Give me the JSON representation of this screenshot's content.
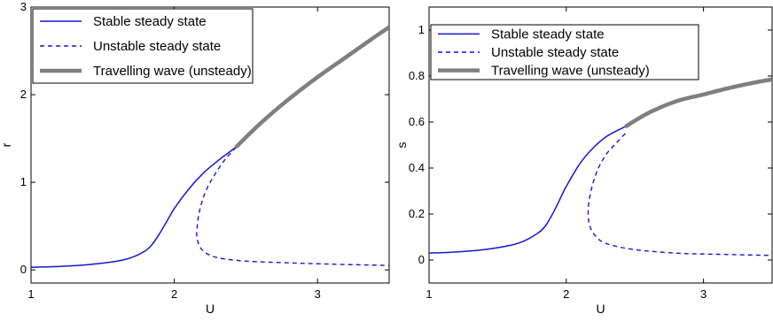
{
  "chart_data": [
    {
      "type": "line",
      "title": "",
      "xlabel": "U",
      "ylabel": "r",
      "xlim": [
        1,
        3.5
      ],
      "ylim": [
        -0.15,
        3
      ],
      "xticks": [
        1,
        2,
        3
      ],
      "yticks": [
        0,
        1,
        2,
        3
      ],
      "grid": false,
      "legend_position": "top-left",
      "series": [
        {
          "name": "Stable steady state",
          "color": "#1515d6",
          "style": "solid",
          "x": [
            1.0,
            1.2,
            1.4,
            1.6,
            1.7,
            1.8,
            1.85,
            1.9,
            1.95,
            2.0,
            2.1,
            2.2,
            2.3,
            2.43
          ],
          "y": [
            0.03,
            0.04,
            0.06,
            0.1,
            0.14,
            0.22,
            0.3,
            0.42,
            0.56,
            0.7,
            0.92,
            1.1,
            1.24,
            1.4
          ]
        },
        {
          "name": "Unstable steady state",
          "color": "#1515d6",
          "style": "dashed",
          "x": [
            2.43,
            2.35,
            2.28,
            2.22,
            2.18,
            2.16,
            2.16,
            2.2,
            2.3,
            2.5,
            2.8,
            3.1,
            3.5
          ],
          "y": [
            1.4,
            1.25,
            1.08,
            0.9,
            0.7,
            0.5,
            0.35,
            0.22,
            0.14,
            0.1,
            0.08,
            0.065,
            0.05
          ]
        },
        {
          "name": "Travelling wave (unsteady)",
          "color": "#7f7f7f",
          "style": "thick",
          "x": [
            2.43,
            2.6,
            2.8,
            3.0,
            3.2,
            3.4,
            3.5
          ],
          "y": [
            1.4,
            1.67,
            1.95,
            2.2,
            2.43,
            2.66,
            2.77
          ]
        }
      ]
    },
    {
      "type": "line",
      "title": "",
      "xlabel": "U",
      "ylabel": "s",
      "xlim": [
        1,
        3.5
      ],
      "ylim": [
        -0.1,
        1.1
      ],
      "xticks": [
        1,
        2,
        3
      ],
      "yticks": [
        0,
        0.2,
        0.4,
        0.6,
        0.8,
        1
      ],
      "grid": false,
      "legend_position": "top-left",
      "series": [
        {
          "name": "Stable steady state",
          "color": "#1515d6",
          "style": "solid",
          "x": [
            1.0,
            1.2,
            1.4,
            1.6,
            1.7,
            1.8,
            1.85,
            1.9,
            1.95,
            2.0,
            2.1,
            2.2,
            2.3,
            2.43
          ],
          "y": [
            0.03,
            0.035,
            0.045,
            0.065,
            0.085,
            0.12,
            0.15,
            0.2,
            0.26,
            0.32,
            0.42,
            0.49,
            0.54,
            0.58
          ]
        },
        {
          "name": "Unstable steady state",
          "color": "#1515d6",
          "style": "dashed",
          "x": [
            2.43,
            2.35,
            2.28,
            2.22,
            2.18,
            2.16,
            2.17,
            2.22,
            2.3,
            2.5,
            2.8,
            3.1,
            3.5
          ],
          "y": [
            0.55,
            0.5,
            0.45,
            0.38,
            0.3,
            0.22,
            0.15,
            0.1,
            0.07,
            0.045,
            0.03,
            0.025,
            0.02
          ]
        },
        {
          "name": "Travelling wave (unsteady)",
          "color": "#7f7f7f",
          "style": "thick",
          "x": [
            2.43,
            2.6,
            2.8,
            3.0,
            3.2,
            3.4,
            3.5
          ],
          "y": [
            0.58,
            0.64,
            0.69,
            0.72,
            0.75,
            0.775,
            0.785
          ]
        }
      ]
    }
  ]
}
